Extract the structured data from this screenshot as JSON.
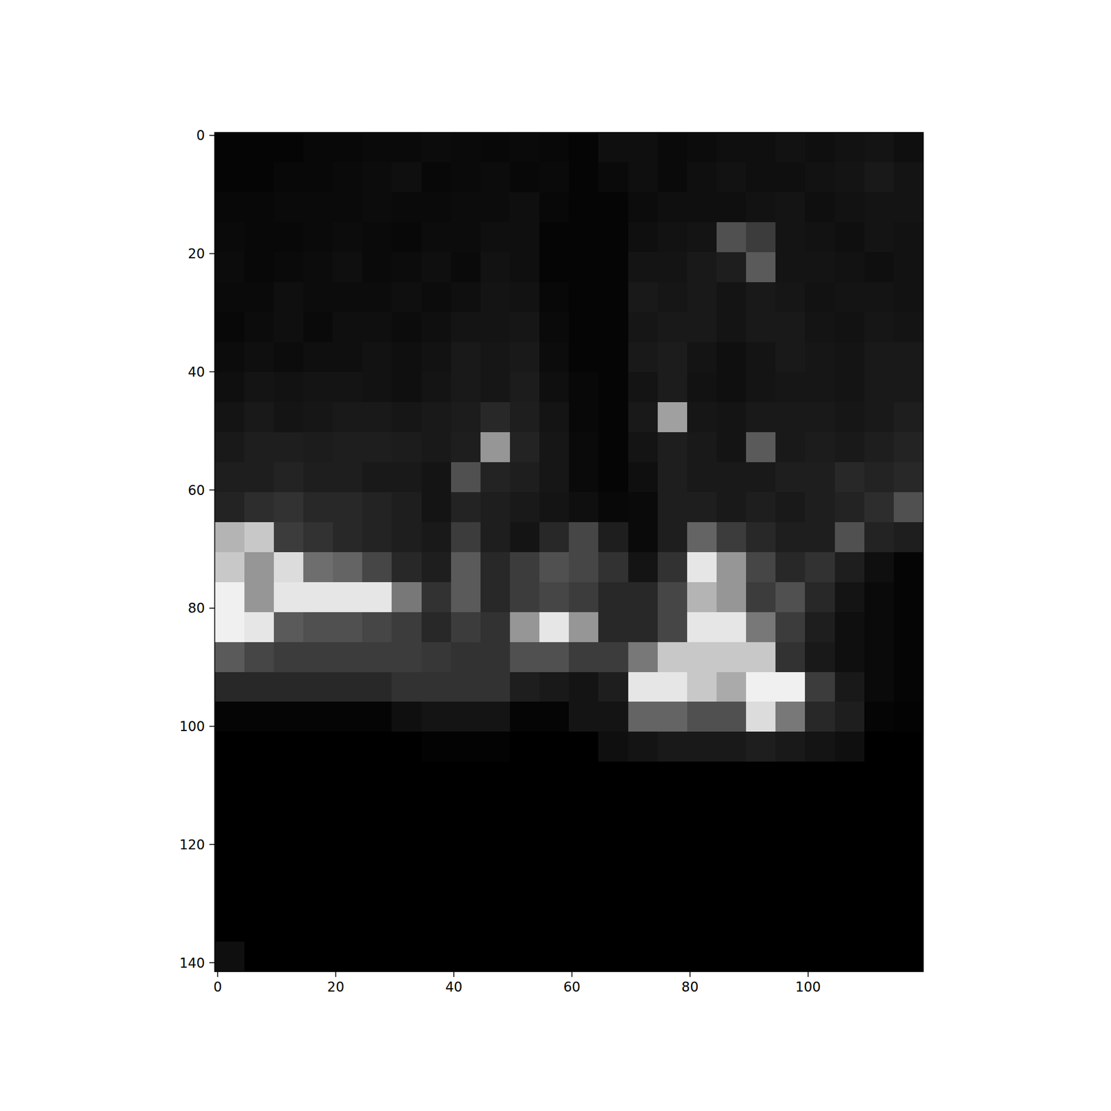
{
  "chart_data": {
    "type": "heatmap",
    "color": "gray",
    "xlim": [
      -0.5,
      119.5
    ],
    "ylim": [
      141.5,
      -0.5
    ],
    "xticks": [
      0,
      20,
      40,
      60,
      80,
      100
    ],
    "yticks": [
      0,
      20,
      40,
      60,
      80,
      100,
      120,
      140
    ],
    "zlim": [
      0,
      255
    ],
    "cells": [
      [
        5,
        5,
        5,
        8,
        8,
        10,
        10,
        12,
        10,
        8,
        10,
        8,
        5,
        15,
        15,
        10,
        12,
        15,
        15,
        18,
        15,
        18,
        20,
        15
      ],
      [
        5,
        5,
        8,
        8,
        10,
        12,
        15,
        8,
        10,
        12,
        8,
        10,
        5,
        10,
        15,
        10,
        15,
        18,
        15,
        15,
        18,
        20,
        25,
        20
      ],
      [
        8,
        8,
        10,
        10,
        10,
        12,
        10,
        10,
        12,
        12,
        15,
        8,
        5,
        5,
        12,
        15,
        15,
        15,
        18,
        20,
        15,
        18,
        20,
        20
      ],
      [
        10,
        8,
        8,
        10,
        12,
        10,
        8,
        12,
        12,
        15,
        15,
        5,
        5,
        5,
        15,
        18,
        20,
        80,
        60,
        20,
        18,
        15,
        20,
        18
      ],
      [
        12,
        8,
        10,
        12,
        15,
        10,
        12,
        15,
        10,
        18,
        15,
        5,
        5,
        5,
        20,
        20,
        25,
        30,
        90,
        20,
        20,
        18,
        15,
        18
      ],
      [
        10,
        10,
        15,
        12,
        12,
        12,
        15,
        12,
        15,
        20,
        18,
        8,
        5,
        5,
        25,
        22,
        25,
        20,
        25,
        22,
        18,
        20,
        20,
        18
      ],
      [
        8,
        12,
        15,
        10,
        15,
        15,
        12,
        15,
        20,
        20,
        22,
        10,
        5,
        5,
        22,
        25,
        25,
        20,
        25,
        25,
        20,
        18,
        22,
        20
      ],
      [
        12,
        15,
        12,
        15,
        15,
        18,
        15,
        18,
        25,
        22,
        25,
        12,
        5,
        5,
        25,
        28,
        20,
        15,
        20,
        25,
        22,
        20,
        25,
        25
      ],
      [
        15,
        20,
        18,
        20,
        20,
        18,
        15,
        20,
        25,
        22,
        28,
        15,
        8,
        5,
        20,
        28,
        18,
        15,
        20,
        22,
        22,
        20,
        25,
        25
      ],
      [
        20,
        25,
        20,
        22,
        25,
        25,
        22,
        25,
        28,
        40,
        30,
        20,
        8,
        5,
        25,
        160,
        22,
        20,
        25,
        25,
        25,
        22,
        25,
        30
      ],
      [
        25,
        30,
        30,
        28,
        30,
        30,
        28,
        25,
        30,
        150,
        35,
        22,
        10,
        5,
        20,
        30,
        25,
        20,
        90,
        25,
        28,
        25,
        30,
        35
      ],
      [
        30,
        30,
        35,
        30,
        30,
        25,
        25,
        20,
        80,
        35,
        30,
        22,
        10,
        5,
        15,
        30,
        25,
        25,
        25,
        30,
        30,
        40,
        35,
        40
      ],
      [
        35,
        45,
        50,
        40,
        40,
        35,
        30,
        20,
        35,
        30,
        25,
        20,
        15,
        8,
        10,
        30,
        30,
        25,
        30,
        25,
        30,
        35,
        45,
        80
      ],
      [
        180,
        200,
        60,
        50,
        40,
        35,
        30,
        25,
        60,
        30,
        20,
        40,
        70,
        30,
        10,
        30,
        100,
        60,
        40,
        30,
        30,
        80,
        35,
        30
      ],
      [
        200,
        150,
        220,
        110,
        100,
        70,
        40,
        30,
        90,
        40,
        60,
        80,
        70,
        50,
        20,
        50,
        230,
        150,
        70,
        40,
        50,
        30,
        15,
        5
      ],
      [
        240,
        150,
        230,
        230,
        230,
        230,
        120,
        50,
        90,
        40,
        60,
        70,
        60,
        40,
        40,
        70,
        180,
        150,
        60,
        80,
        40,
        20,
        10,
        5
      ],
      [
        240,
        230,
        90,
        80,
        80,
        70,
        60,
        40,
        60,
        50,
        150,
        230,
        150,
        40,
        40,
        70,
        230,
        230,
        120,
        60,
        30,
        15,
        10,
        5
      ],
      [
        90,
        70,
        60,
        60,
        60,
        60,
        60,
        55,
        50,
        50,
        80,
        80,
        60,
        60,
        120,
        200,
        200,
        200,
        200,
        50,
        25,
        15,
        10,
        5
      ],
      [
        40,
        40,
        40,
        40,
        40,
        40,
        50,
        50,
        50,
        50,
        30,
        25,
        20,
        30,
        230,
        230,
        200,
        170,
        240,
        240,
        60,
        25,
        10,
        5
      ],
      [
        5,
        5,
        5,
        5,
        5,
        5,
        15,
        20,
        20,
        20,
        5,
        5,
        20,
        20,
        100,
        100,
        80,
        80,
        220,
        120,
        40,
        30,
        5,
        3
      ],
      [
        0,
        0,
        0,
        0,
        0,
        0,
        0,
        3,
        3,
        3,
        0,
        0,
        0,
        15,
        20,
        25,
        25,
        25,
        30,
        25,
        20,
        15,
        0,
        0
      ],
      [
        0,
        0,
        0,
        0,
        0,
        0,
        0,
        0,
        0,
        0,
        0,
        0,
        0,
        0,
        0,
        0,
        0,
        0,
        0,
        0,
        0,
        0,
        0,
        0
      ],
      [
        0,
        0,
        0,
        0,
        0,
        0,
        0,
        0,
        0,
        0,
        0,
        0,
        0,
        0,
        0,
        0,
        0,
        0,
        0,
        0,
        0,
        0,
        0,
        0
      ],
      [
        0,
        0,
        0,
        0,
        0,
        0,
        0,
        0,
        0,
        0,
        0,
        0,
        0,
        0,
        0,
        0,
        0,
        0,
        0,
        0,
        0,
        0,
        0,
        0
      ],
      [
        0,
        0,
        0,
        0,
        0,
        0,
        0,
        0,
        0,
        0,
        0,
        0,
        0,
        0,
        0,
        0,
        0,
        0,
        0,
        0,
        0,
        0,
        0,
        0
      ],
      [
        0,
        0,
        0,
        0,
        0,
        0,
        0,
        0,
        0,
        0,
        0,
        0,
        0,
        0,
        0,
        0,
        0,
        0,
        0,
        0,
        0,
        0,
        0,
        0
      ],
      [
        0,
        0,
        0,
        0,
        0,
        0,
        0,
        0,
        0,
        0,
        0,
        0,
        0,
        0,
        0,
        0,
        0,
        0,
        0,
        0,
        0,
        0,
        0,
        0
      ],
      [
        15,
        0,
        0,
        0,
        0,
        0,
        0,
        0,
        0,
        0,
        0,
        0,
        0,
        0,
        0,
        0,
        0,
        0,
        0,
        0,
        0,
        0,
        0,
        0
      ]
    ]
  }
}
